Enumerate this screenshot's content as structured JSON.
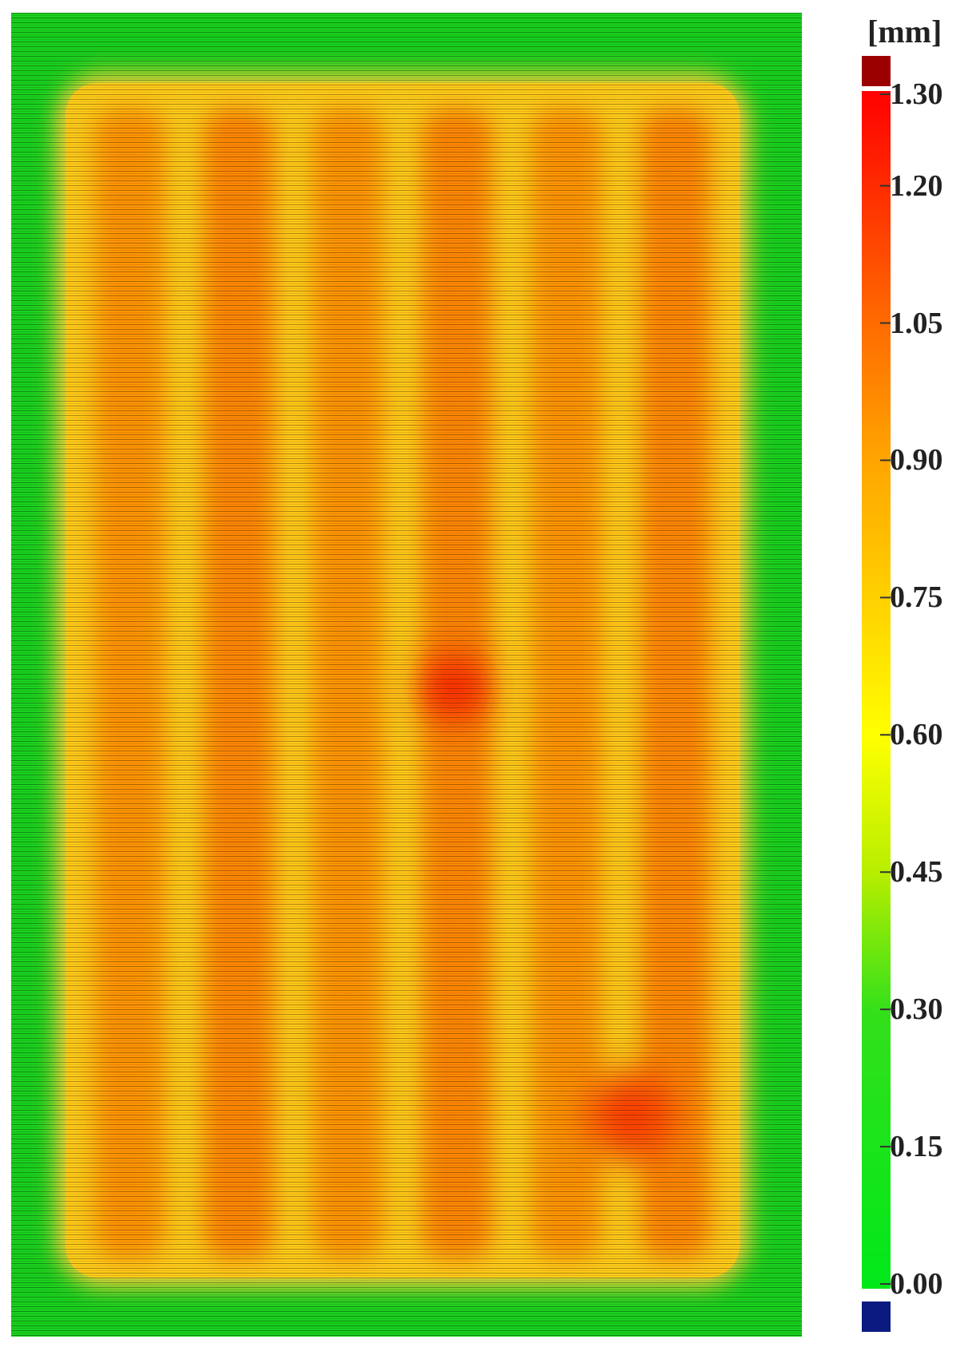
{
  "chart_data": {
    "type": "heatmap",
    "title": "",
    "xlabel": "",
    "ylabel": "",
    "colorbar": {
      "unit": "[mm]",
      "ticks": [
        "1.30",
        "1.20",
        "1.05",
        "0.90",
        "0.75",
        "0.60",
        "0.45",
        "0.30",
        "0.15",
        "0.00"
      ],
      "range": [
        0.0,
        1.3
      ],
      "over_color": "#9b0000",
      "under_color": "#0a1a80",
      "stops": [
        {
          "value": 0.0,
          "color": "#00e81a"
        },
        {
          "value": 0.3,
          "color": "#33e01a"
        },
        {
          "value": 0.45,
          "color": "#b6ee00"
        },
        {
          "value": 0.6,
          "color": "#ffff00"
        },
        {
          "value": 0.75,
          "color": "#ffd000"
        },
        {
          "value": 0.9,
          "color": "#ffa500"
        },
        {
          "value": 1.05,
          "color": "#ff6a00"
        },
        {
          "value": 1.2,
          "color": "#ff2a00"
        },
        {
          "value": 1.3,
          "color": "#ff0000"
        }
      ]
    },
    "background_value": 0.0,
    "deposit_typical_range": [
      0.75,
      1.05
    ],
    "track_count": 6,
    "hotspots": [
      {
        "label": "center-right",
        "value": 1.2
      },
      {
        "label": "bottom-right",
        "value": 1.15
      }
    ]
  }
}
